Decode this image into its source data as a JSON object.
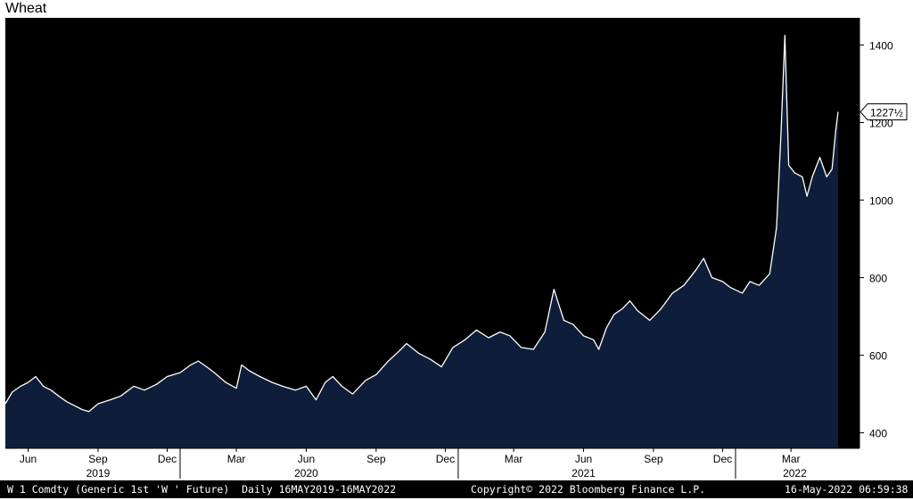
{
  "title": "Wheat",
  "chart_data": {
    "type": "area",
    "title": "Wheat",
    "ylim": [
      360,
      1470
    ],
    "y_ticks": [
      "400",
      "600",
      "800",
      "1000",
      "1200",
      "1400"
    ],
    "y_tick_values": [
      400,
      600,
      800,
      1000,
      1200,
      1400
    ],
    "x_months": [
      "Jun",
      "Sep",
      "Dec",
      "Mar",
      "Jun",
      "Sep",
      "Dec",
      "Mar",
      "Jun",
      "Sep",
      "Dec",
      "Mar"
    ],
    "x_month_dates": [
      "2019-06-15",
      "2019-09-15",
      "2019-12-15",
      "2020-03-15",
      "2020-06-15",
      "2020-09-15",
      "2020-12-15",
      "2021-03-15",
      "2021-06-15",
      "2021-09-15",
      "2021-12-15",
      "2022-03-15"
    ],
    "x_years": [
      "2019",
      "2020",
      "2021",
      "2022"
    ],
    "x_year_dates": [
      "2019-09-15",
      "2020-06-15",
      "2021-06-15",
      "2022-03-20"
    ],
    "last_value_label": "1227½",
    "last_value": 1227.5,
    "grid": false,
    "series": [
      {
        "values": [
          [
            "2019-05-16",
            475
          ],
          [
            "2019-05-25",
            505
          ],
          [
            "2019-06-05",
            520
          ],
          [
            "2019-06-15",
            530
          ],
          [
            "2019-06-25",
            545
          ],
          [
            "2019-07-05",
            520
          ],
          [
            "2019-07-15",
            510
          ],
          [
            "2019-07-25",
            495
          ],
          [
            "2019-08-05",
            480
          ],
          [
            "2019-08-15",
            470
          ],
          [
            "2019-08-25",
            460
          ],
          [
            "2019-09-03",
            455
          ],
          [
            "2019-09-15",
            475
          ],
          [
            "2019-10-01",
            485
          ],
          [
            "2019-10-15",
            495
          ],
          [
            "2019-11-01",
            520
          ],
          [
            "2019-11-15",
            510
          ],
          [
            "2019-12-01",
            525
          ],
          [
            "2019-12-15",
            545
          ],
          [
            "2020-01-01",
            555
          ],
          [
            "2020-01-15",
            575
          ],
          [
            "2020-01-25",
            585
          ],
          [
            "2020-02-05",
            570
          ],
          [
            "2020-02-15",
            555
          ],
          [
            "2020-03-01",
            530
          ],
          [
            "2020-03-15",
            515
          ],
          [
            "2020-03-22",
            575
          ],
          [
            "2020-04-01",
            560
          ],
          [
            "2020-04-15",
            545
          ],
          [
            "2020-05-01",
            530
          ],
          [
            "2020-05-15",
            520
          ],
          [
            "2020-06-01",
            510
          ],
          [
            "2020-06-15",
            520
          ],
          [
            "2020-06-28",
            485
          ],
          [
            "2020-07-10",
            530
          ],
          [
            "2020-07-20",
            545
          ],
          [
            "2020-08-01",
            520
          ],
          [
            "2020-08-15",
            500
          ],
          [
            "2020-09-01",
            535
          ],
          [
            "2020-09-15",
            550
          ],
          [
            "2020-10-01",
            585
          ],
          [
            "2020-10-15",
            610
          ],
          [
            "2020-10-25",
            630
          ],
          [
            "2020-11-10",
            605
          ],
          [
            "2020-11-25",
            590
          ],
          [
            "2020-12-10",
            570
          ],
          [
            "2020-12-25",
            620
          ],
          [
            "2021-01-10",
            640
          ],
          [
            "2021-01-25",
            665
          ],
          [
            "2021-02-10",
            645
          ],
          [
            "2021-02-25",
            660
          ],
          [
            "2021-03-10",
            650
          ],
          [
            "2021-03-25",
            620
          ],
          [
            "2021-04-10",
            615
          ],
          [
            "2021-04-25",
            660
          ],
          [
            "2021-05-07",
            770
          ],
          [
            "2021-05-20",
            690
          ],
          [
            "2021-06-01",
            680
          ],
          [
            "2021-06-15",
            650
          ],
          [
            "2021-06-28",
            640
          ],
          [
            "2021-07-05",
            615
          ],
          [
            "2021-07-15",
            670
          ],
          [
            "2021-07-25",
            705
          ],
          [
            "2021-08-05",
            720
          ],
          [
            "2021-08-15",
            740
          ],
          [
            "2021-08-25",
            715
          ],
          [
            "2021-09-10",
            690
          ],
          [
            "2021-09-25",
            720
          ],
          [
            "2021-10-10",
            760
          ],
          [
            "2021-10-25",
            780
          ],
          [
            "2021-11-10",
            820
          ],
          [
            "2021-11-20",
            850
          ],
          [
            "2021-12-01",
            800
          ],
          [
            "2021-12-15",
            790
          ],
          [
            "2021-12-25",
            775
          ],
          [
            "2022-01-10",
            760
          ],
          [
            "2022-01-20",
            790
          ],
          [
            "2022-02-01",
            780
          ],
          [
            "2022-02-15",
            810
          ],
          [
            "2022-02-24",
            930
          ],
          [
            "2022-03-02",
            1180
          ],
          [
            "2022-03-07",
            1425
          ],
          [
            "2022-03-12",
            1090
          ],
          [
            "2022-03-20",
            1070
          ],
          [
            "2022-03-30",
            1060
          ],
          [
            "2022-04-05",
            1010
          ],
          [
            "2022-04-12",
            1060
          ],
          [
            "2022-04-22",
            1110
          ],
          [
            "2022-05-01",
            1060
          ],
          [
            "2022-05-08",
            1080
          ],
          [
            "2022-05-13",
            1180
          ],
          [
            "2022-05-16",
            1227.5
          ]
        ]
      }
    ]
  },
  "footer": {
    "ticker": "W 1 Comdty (Generic 1st 'W ' Future)  Daily 16MAY2019-16MAY2022",
    "copyright": "Copyright© 2022 Bloomberg Finance L.P.",
    "timestamp": "16-May-2022 06:59:38"
  }
}
